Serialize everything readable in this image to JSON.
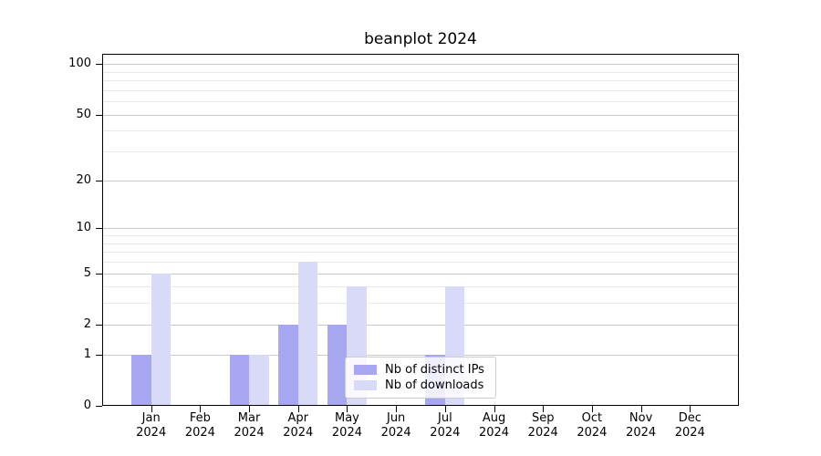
{
  "title": "beanplot 2024",
  "chart_data": {
    "type": "bar",
    "title": "beanplot 2024",
    "categories": [
      "Jan",
      "Feb",
      "Mar",
      "Apr",
      "May",
      "Jun",
      "Jul",
      "Aug",
      "Sep",
      "Oct",
      "Nov",
      "Dec"
    ],
    "x_year_label": "2024",
    "series": [
      {
        "name": "Nb of distinct IPs",
        "color": "#a6a6f1",
        "values": [
          1,
          0,
          1,
          2,
          2,
          0,
          1,
          0,
          0,
          0,
          0,
          0
        ]
      },
      {
        "name": "Nb of downloads",
        "color": "#d9d9f8",
        "values": [
          5,
          0,
          1,
          6,
          4,
          0,
          4,
          0,
          0,
          0,
          0,
          0
        ]
      }
    ],
    "xlabel": "",
    "ylabel": "",
    "yscale": "log1p",
    "ylim": [
      0,
      115
    ],
    "yticks_major": [
      0,
      1,
      2,
      5,
      10,
      20,
      50,
      100
    ],
    "yticks_minor": [
      3,
      4,
      6,
      7,
      8,
      9,
      30,
      40,
      60,
      70,
      80,
      90
    ],
    "grid": true,
    "legend_position": "inside-bottom-center",
    "colors": {
      "grid_major": "#c8c8c8",
      "grid_minor": "#e9e9e9",
      "axis": "#000000",
      "text": "#000000"
    }
  }
}
